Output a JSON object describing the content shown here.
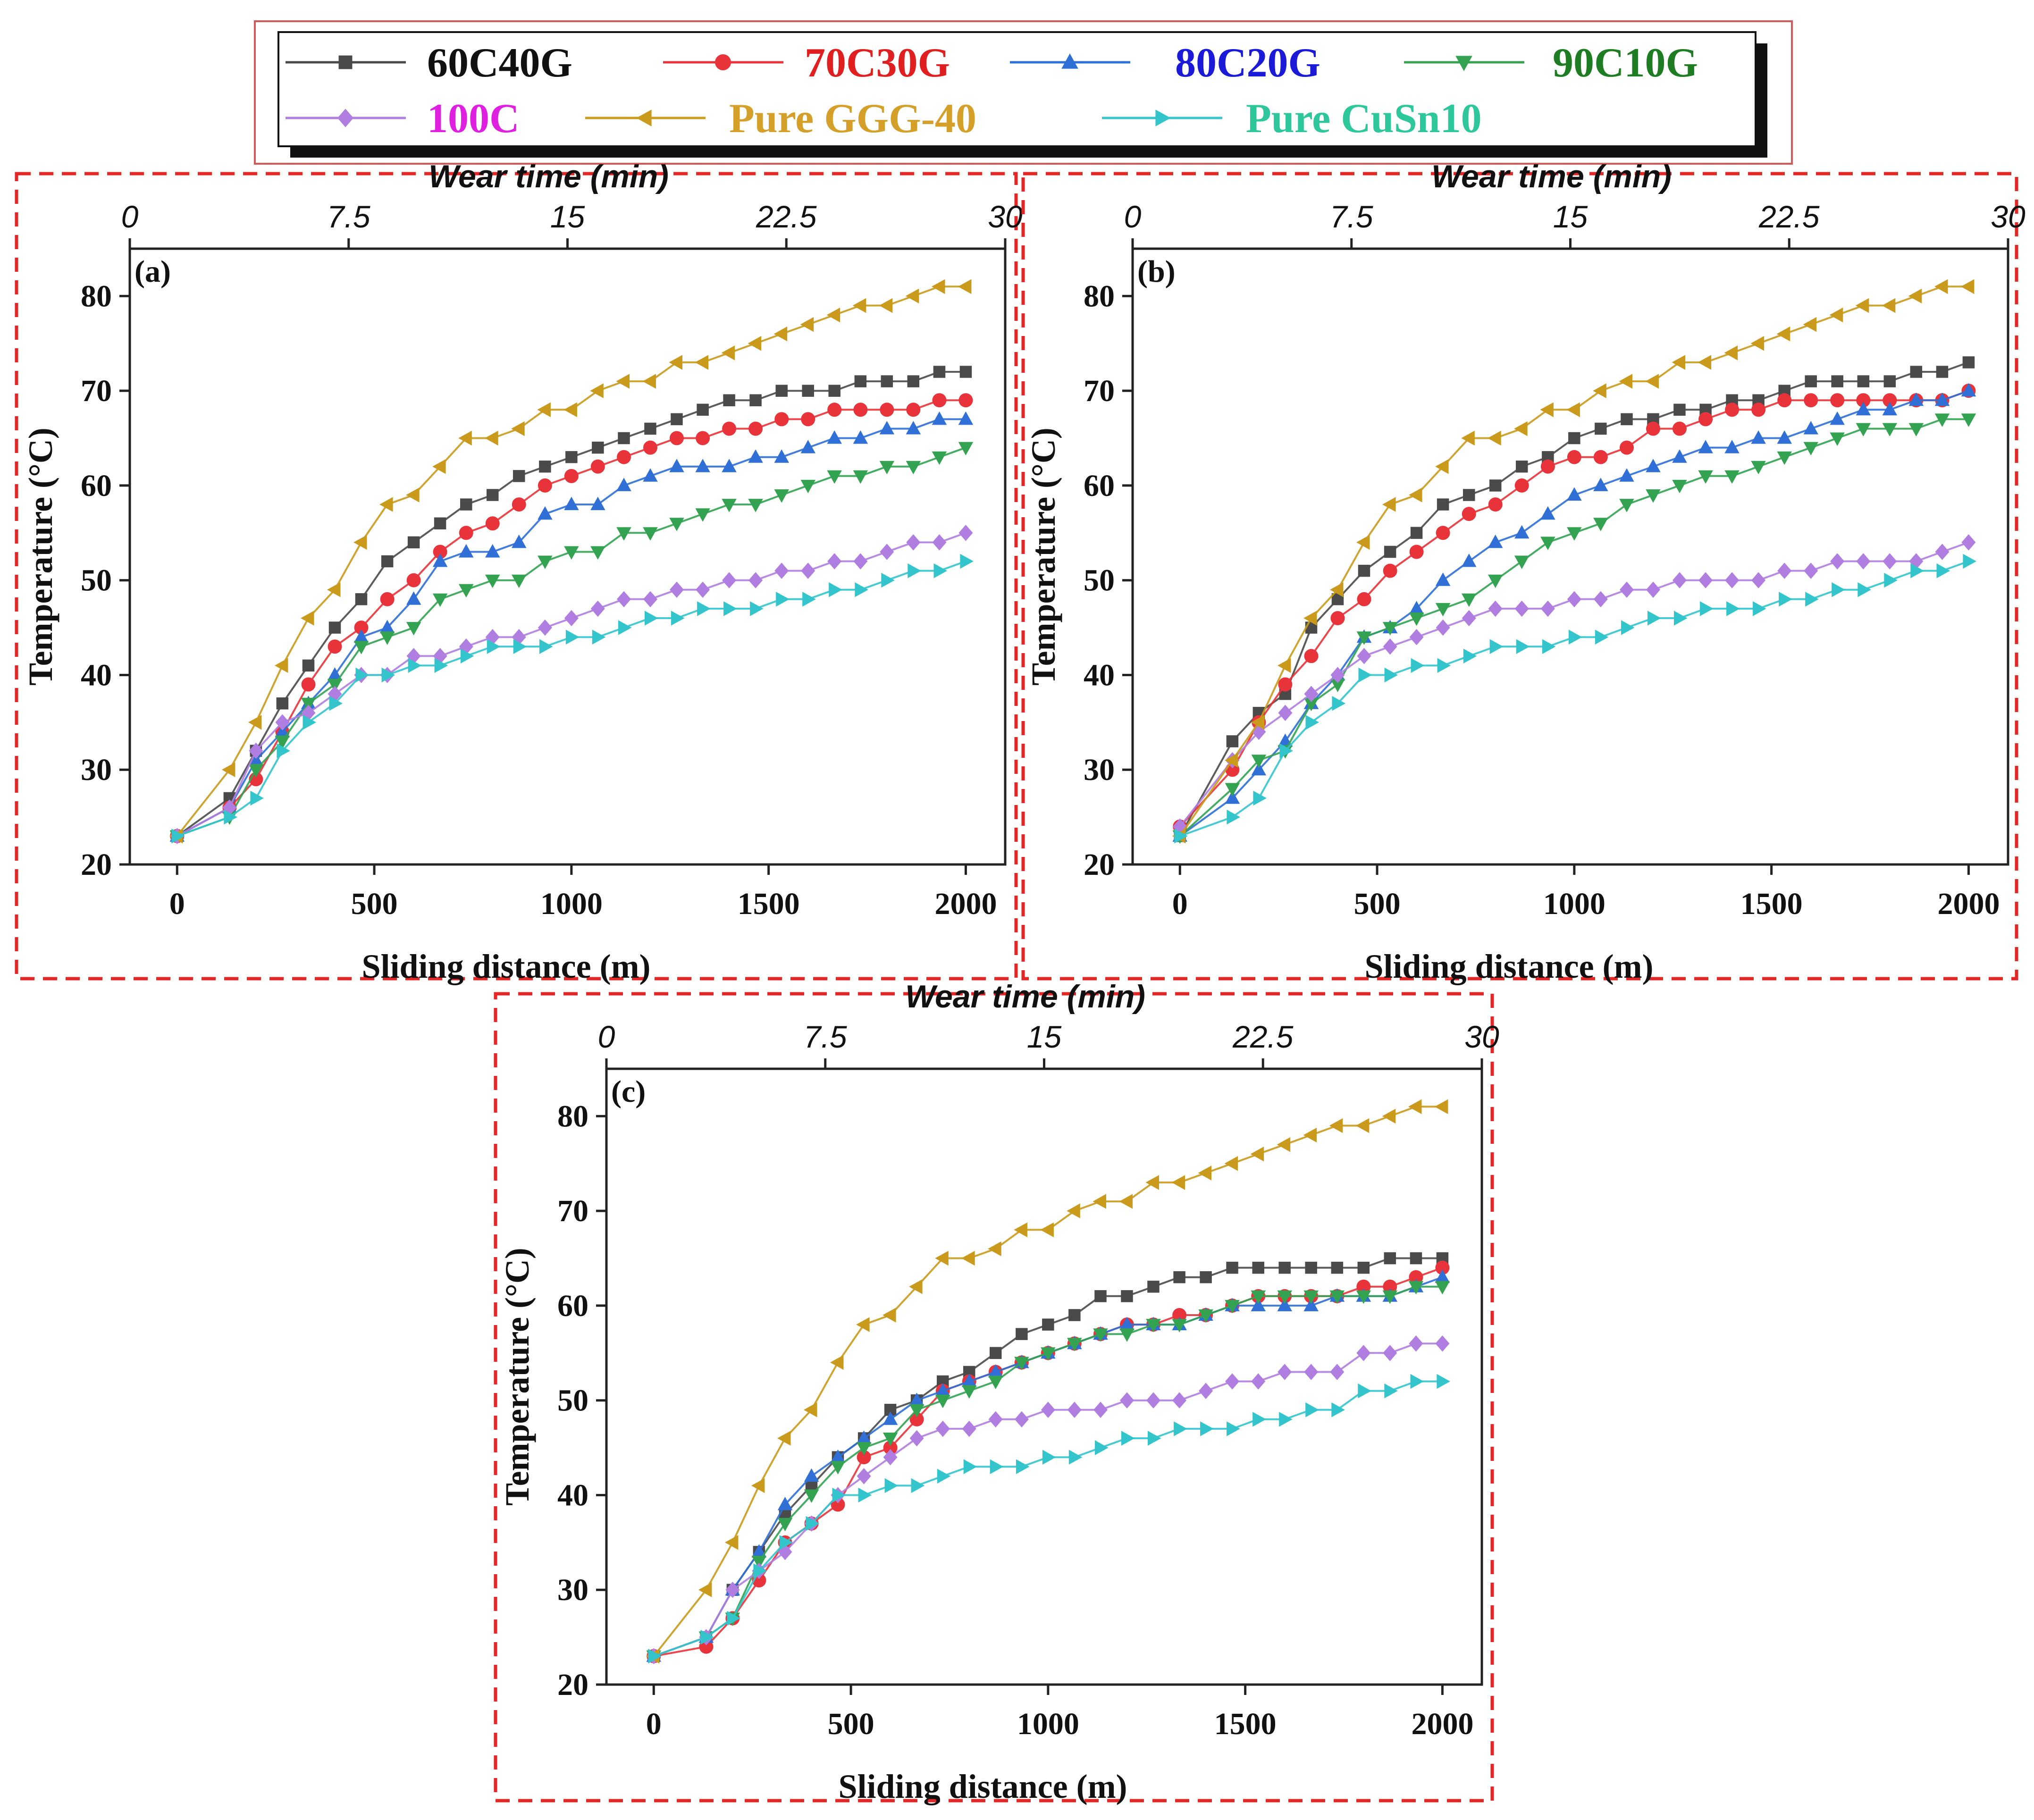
{
  "legend": [
    {
      "key": "s60",
      "label": "60C40G",
      "color": "#4a4a4a",
      "text_color": "#111111",
      "marker": "square"
    },
    {
      "key": "s70",
      "label": "70C30G",
      "color": "#e8333a",
      "text_color": "#e02020",
      "marker": "circle"
    },
    {
      "key": "s80",
      "label": "80C20G",
      "color": "#2f6fd6",
      "text_color": "#1a1ad8",
      "marker": "triangle-up"
    },
    {
      "key": "s90",
      "label": "90C10G",
      "color": "#33a352",
      "text_color": "#1e7d22",
      "marker": "triangle-down"
    },
    {
      "key": "s100",
      "label": "100C",
      "color": "#b07ee0",
      "text_color": "#e020e0",
      "marker": "diamond"
    },
    {
      "key": "gg",
      "label": "Pure GGG-40",
      "color": "#c99a1c",
      "text_color": "#d4a02a",
      "marker": "triangle-left"
    },
    {
      "key": "cu",
      "label": "Pure CuSn10",
      "color": "#33c4cc",
      "text_color": "#2ec79c",
      "marker": "triangle-right"
    }
  ],
  "chart_data": [
    {
      "type": "line",
      "panel_label": "(a)",
      "xlabel": "Sliding distance (m)",
      "ylabel": "Temperature (°C)",
      "top_xlabel": "Wear time (min)",
      "xlim": [
        -120,
        2100
      ],
      "ylim": [
        20,
        85
      ],
      "x_ticks": [
        0,
        500,
        1000,
        1500,
        2000
      ],
      "y_ticks": [
        20,
        30,
        40,
        50,
        60,
        70,
        80
      ],
      "top_ticks": [
        "0",
        "7.5",
        "15",
        "22.5",
        "30"
      ],
      "x": [
        0,
        133,
        200,
        267,
        333,
        400,
        467,
        533,
        600,
        667,
        733,
        800,
        867,
        933,
        1000,
        1067,
        1133,
        1200,
        1267,
        1333,
        1400,
        1467,
        1533,
        1600,
        1667,
        1733,
        1800,
        1867,
        1933,
        2000
      ],
      "series": [
        {
          "key": "s60",
          "name": "60C40G",
          "values": [
            23,
            27,
            32,
            37,
            41,
            45,
            48,
            52,
            54,
            56,
            58,
            59,
            61,
            62,
            63,
            64,
            65,
            66,
            67,
            68,
            69,
            69,
            70,
            70,
            70,
            71,
            71,
            71,
            72,
            72
          ]
        },
        {
          "key": "s70",
          "name": "70C30G",
          "values": [
            23,
            26,
            29,
            34,
            39,
            43,
            45,
            48,
            50,
            53,
            55,
            56,
            58,
            60,
            61,
            62,
            63,
            64,
            65,
            65,
            66,
            66,
            67,
            67,
            68,
            68,
            68,
            68,
            69,
            69
          ]
        },
        {
          "key": "s80",
          "name": "80C20G",
          "values": [
            23,
            26,
            31,
            34,
            37,
            40,
            44,
            45,
            48,
            52,
            53,
            53,
            54,
            57,
            58,
            58,
            60,
            61,
            62,
            62,
            62,
            63,
            63,
            64,
            65,
            65,
            66,
            66,
            67,
            67
          ]
        },
        {
          "key": "s90",
          "name": "90C10G",
          "values": [
            23,
            25,
            30,
            33,
            37,
            39,
            43,
            44,
            45,
            48,
            49,
            50,
            50,
            52,
            53,
            53,
            55,
            55,
            56,
            57,
            58,
            58,
            59,
            60,
            61,
            61,
            62,
            62,
            63,
            64
          ]
        },
        {
          "key": "s100",
          "name": "100C",
          "values": [
            23,
            26,
            32,
            35,
            36,
            38,
            40,
            40,
            42,
            42,
            43,
            44,
            44,
            45,
            46,
            47,
            48,
            48,
            49,
            49,
            50,
            50,
            51,
            51,
            52,
            52,
            53,
            54,
            54,
            55
          ]
        },
        {
          "key": "gg",
          "name": "Pure GGG-40",
          "values": [
            23,
            30,
            35,
            41,
            46,
            49,
            54,
            58,
            59,
            62,
            65,
            65,
            66,
            68,
            68,
            70,
            71,
            71,
            73,
            73,
            74,
            75,
            76,
            77,
            78,
            79,
            79,
            80,
            81,
            81
          ]
        },
        {
          "key": "cu",
          "name": "Pure CuSn10",
          "values": [
            23,
            25,
            27,
            32,
            35,
            37,
            40,
            40,
            41,
            41,
            42,
            43,
            43,
            43,
            44,
            44,
            45,
            46,
            46,
            47,
            47,
            47,
            48,
            48,
            49,
            49,
            50,
            51,
            51,
            52
          ]
        }
      ]
    },
    {
      "type": "line",
      "panel_label": "(b)",
      "xlabel": "Sliding distance (m)",
      "ylabel": "Temperature (°C)",
      "top_xlabel": "Wear time (min)",
      "xlim": [
        -120,
        2100
      ],
      "ylim": [
        20,
        85
      ],
      "x_ticks": [
        0,
        500,
        1000,
        1500,
        2000
      ],
      "y_ticks": [
        20,
        30,
        40,
        50,
        60,
        70,
        80
      ],
      "top_ticks": [
        "0",
        "7.5",
        "15",
        "22.5",
        "30"
      ],
      "x": [
        0,
        133,
        200,
        267,
        333,
        400,
        467,
        533,
        600,
        667,
        733,
        800,
        867,
        933,
        1000,
        1067,
        1133,
        1200,
        1267,
        1333,
        1400,
        1467,
        1533,
        1600,
        1667,
        1733,
        1800,
        1867,
        1933,
        2000
      ],
      "series": [
        {
          "key": "s60",
          "name": "60C40G",
          "values": [
            23,
            33,
            36,
            38,
            45,
            48,
            51,
            53,
            55,
            58,
            59,
            60,
            62,
            63,
            65,
            66,
            67,
            67,
            68,
            68,
            69,
            69,
            70,
            71,
            71,
            71,
            71,
            72,
            72,
            73
          ]
        },
        {
          "key": "s70",
          "name": "70C30G",
          "values": [
            24,
            30,
            35,
            39,
            42,
            46,
            48,
            51,
            53,
            55,
            57,
            58,
            60,
            62,
            63,
            63,
            64,
            66,
            66,
            67,
            68,
            68,
            69,
            69,
            69,
            69,
            69,
            69,
            69,
            70
          ]
        },
        {
          "key": "s80",
          "name": "80C20G",
          "values": [
            23,
            27,
            30,
            33,
            37,
            40,
            44,
            45,
            47,
            50,
            52,
            54,
            55,
            57,
            59,
            60,
            61,
            62,
            63,
            64,
            64,
            65,
            65,
            66,
            67,
            68,
            68,
            69,
            69,
            70
          ]
        },
        {
          "key": "s90",
          "name": "90C10G",
          "values": [
            23,
            28,
            31,
            32,
            37,
            39,
            44,
            45,
            46,
            47,
            48,
            50,
            52,
            54,
            55,
            56,
            58,
            59,
            60,
            61,
            61,
            62,
            63,
            64,
            65,
            66,
            66,
            66,
            67,
            67
          ]
        },
        {
          "key": "s100",
          "name": "100C",
          "values": [
            24,
            31,
            34,
            36,
            38,
            40,
            42,
            43,
            44,
            45,
            46,
            47,
            47,
            47,
            48,
            48,
            49,
            49,
            50,
            50,
            50,
            50,
            51,
            51,
            52,
            52,
            52,
            52,
            53,
            54
          ]
        },
        {
          "key": "gg",
          "name": "Pure GGG-40",
          "values": [
            23,
            31,
            35,
            41,
            46,
            49,
            54,
            58,
            59,
            62,
            65,
            65,
            66,
            68,
            68,
            70,
            71,
            71,
            73,
            73,
            74,
            75,
            76,
            77,
            78,
            79,
            79,
            80,
            81,
            81
          ]
        },
        {
          "key": "cu",
          "name": "Pure CuSn10",
          "values": [
            23,
            25,
            27,
            32,
            35,
            37,
            40,
            40,
            41,
            41,
            42,
            43,
            43,
            43,
            44,
            44,
            45,
            46,
            46,
            47,
            47,
            47,
            48,
            48,
            49,
            49,
            50,
            51,
            51,
            52
          ]
        }
      ]
    },
    {
      "type": "line",
      "panel_label": "(c)",
      "xlabel": "Sliding distance (m)",
      "ylabel": "Temperature (°C)",
      "top_xlabel": "Wear time (min)",
      "xlim": [
        -120,
        2100
      ],
      "ylim": [
        20,
        85
      ],
      "x_ticks": [
        0,
        500,
        1000,
        1500,
        2000
      ],
      "y_ticks": [
        20,
        30,
        40,
        50,
        60,
        70,
        80
      ],
      "top_ticks": [
        "0",
        "7.5",
        "15",
        "22.5",
        "30"
      ],
      "x": [
        0,
        133,
        200,
        267,
        333,
        400,
        467,
        533,
        600,
        667,
        733,
        800,
        867,
        933,
        1000,
        1067,
        1133,
        1200,
        1267,
        1333,
        1400,
        1467,
        1533,
        1600,
        1667,
        1733,
        1800,
        1867,
        1933,
        2000
      ],
      "series": [
        {
          "key": "s60",
          "name": "60C40G",
          "values": [
            23,
            25,
            30,
            34,
            38,
            41,
            44,
            46,
            49,
            50,
            52,
            53,
            55,
            57,
            58,
            59,
            61,
            61,
            62,
            63,
            63,
            64,
            64,
            64,
            64,
            64,
            64,
            65,
            65,
            65
          ]
        },
        {
          "key": "s70",
          "name": "70C30G",
          "values": [
            23,
            24,
            27,
            31,
            35,
            37,
            39,
            44,
            45,
            48,
            51,
            52,
            53,
            54,
            55,
            56,
            57,
            58,
            58,
            59,
            59,
            60,
            61,
            61,
            61,
            61,
            62,
            62,
            63,
            64
          ]
        },
        {
          "key": "s80",
          "name": "80C20G",
          "values": [
            23,
            25,
            30,
            34,
            39,
            42,
            44,
            46,
            48,
            50,
            51,
            52,
            53,
            54,
            55,
            56,
            57,
            58,
            58,
            58,
            59,
            60,
            60,
            60,
            60,
            61,
            61,
            61,
            62,
            63
          ]
        },
        {
          "key": "s90",
          "name": "90C10G",
          "values": [
            23,
            25,
            27,
            33,
            37,
            40,
            43,
            45,
            46,
            49,
            50,
            51,
            52,
            54,
            55,
            56,
            57,
            57,
            58,
            58,
            59,
            60,
            61,
            61,
            61,
            61,
            61,
            61,
            62,
            62
          ]
        },
        {
          "key": "s100",
          "name": "100C",
          "values": [
            23,
            25,
            30,
            32,
            34,
            37,
            40,
            42,
            44,
            46,
            47,
            47,
            48,
            48,
            49,
            49,
            49,
            50,
            50,
            50,
            51,
            52,
            52,
            53,
            53,
            53,
            55,
            55,
            56,
            56
          ]
        },
        {
          "key": "gg",
          "name": "Pure GGG-40",
          "values": [
            23,
            30,
            35,
            41,
            46,
            49,
            54,
            58,
            59,
            62,
            65,
            65,
            66,
            68,
            68,
            70,
            71,
            71,
            73,
            73,
            74,
            75,
            76,
            77,
            78,
            79,
            79,
            80,
            81,
            81
          ]
        },
        {
          "key": "cu",
          "name": "Pure CuSn10",
          "values": [
            23,
            25,
            27,
            32,
            35,
            37,
            40,
            40,
            41,
            41,
            42,
            43,
            43,
            43,
            44,
            44,
            45,
            46,
            46,
            47,
            47,
            47,
            48,
            48,
            49,
            49,
            51,
            51,
            52,
            52
          ]
        }
      ]
    }
  ]
}
